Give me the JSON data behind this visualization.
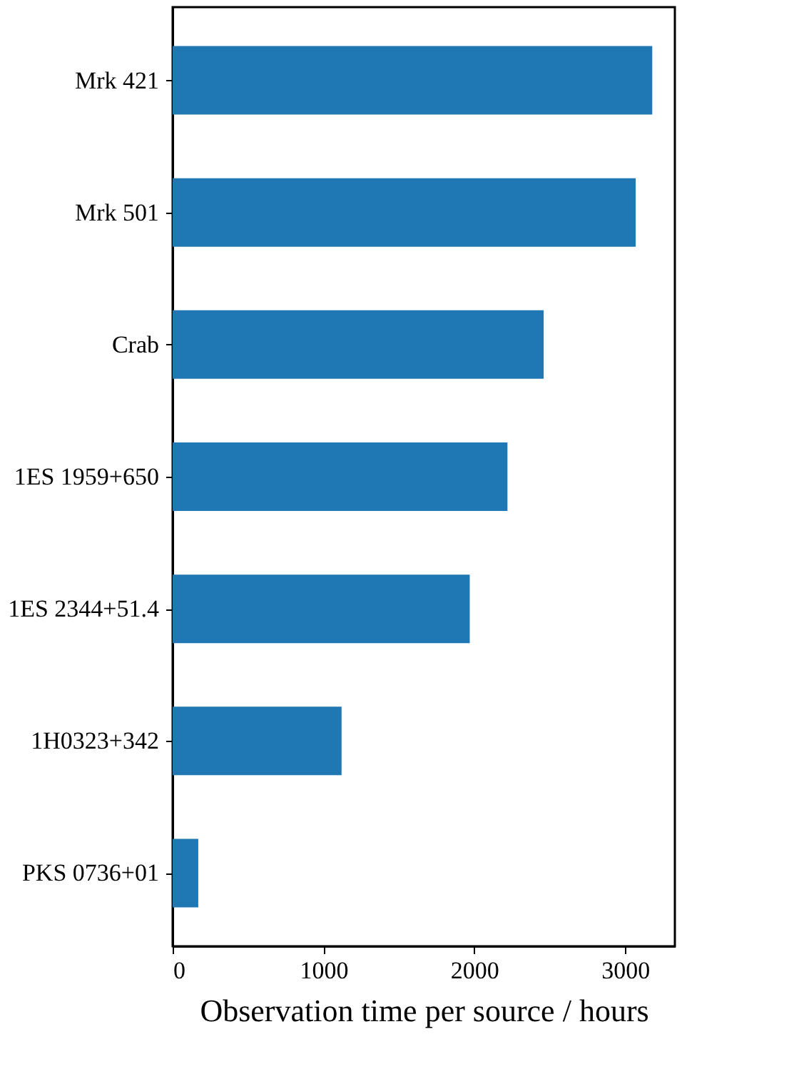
{
  "chart_data": {
    "type": "bar",
    "orientation": "horizontal",
    "xlabel": "Observation time per source / hours",
    "categories": [
      "Mrk 421",
      "Mrk 501",
      "Crab",
      "1ES 1959+650",
      "1ES 2344+51.4",
      "1H0323+342",
      "PKS 0736+01"
    ],
    "values": [
      3180,
      3070,
      2460,
      2220,
      1970,
      1120,
      170
    ],
    "color": "#1f77b4",
    "xlim": [
      0,
      3330
    ],
    "xticks": [
      0,
      1000,
      2000,
      3000
    ],
    "grid": false
  }
}
